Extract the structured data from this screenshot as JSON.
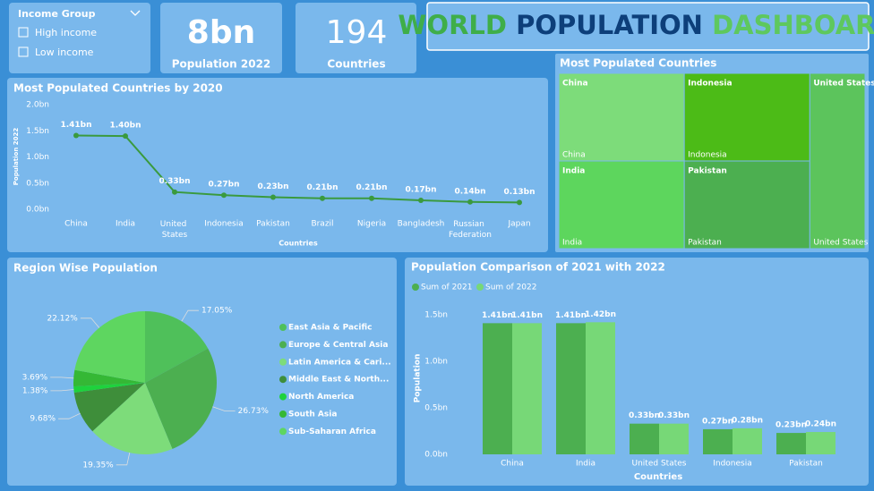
{
  "slicer": {
    "title": "Income Group",
    "items": [
      "High income",
      "Low income"
    ]
  },
  "cards": [
    {
      "value": "8bn",
      "label": "Population 2022"
    },
    {
      "value": "194",
      "label": "Countries"
    }
  ],
  "header": {
    "title": [
      "WORLD",
      "POPULATION",
      "DASHBOARD"
    ]
  },
  "chart_data": [
    {
      "type": "line",
      "title": "Most Populated Countries by 2020",
      "x_label": "Countries",
      "y_label": "Population 2022",
      "categories": [
        "China",
        "India",
        "United States",
        "Indonesia",
        "Pakistan",
        "Brazil",
        "Nigeria",
        "Bangladesh",
        "Russian Federation",
        "Japan"
      ],
      "values": [
        1.41,
        1.4,
        0.33,
        0.27,
        0.23,
        0.21,
        0.21,
        0.17,
        0.14,
        0.13
      ],
      "value_labels": [
        "1.41bn",
        "1.40bn",
        "0.33bn",
        "0.27bn",
        "0.23bn",
        "0.21bn",
        "0.21bn",
        "0.17bn",
        "0.14bn",
        "0.13bn"
      ],
      "color": "#3a9a3e",
      "ylim": [
        0,
        2
      ],
      "yticks": [
        {
          "value": 0,
          "label": "0.0bn"
        },
        {
          "value": 0.5,
          "label": "0.5bn"
        },
        {
          "value": 1,
          "label": "1.0bn"
        },
        {
          "value": 1.5,
          "label": "1.5bn"
        },
        {
          "value": 2,
          "label": "2.0bn"
        }
      ]
    },
    {
      "type": "treemap",
      "title": "Most Populated Countries",
      "categories": [
        "China",
        "Indonesia",
        "United States",
        "India",
        "Pakistan"
      ],
      "values": [
        25,
        25,
        22,
        25,
        25
      ],
      "colors": [
        "#7ddc7a",
        "#4cbb17",
        "#5cc45c",
        "#5dd65d",
        "#4caf50"
      ]
    },
    {
      "type": "pie",
      "title": "Region Wise Population",
      "categories": [
        "East Asia & Pacific",
        "Europe & Central Asia",
        "Latin America & Cari...",
        "Middle East & North...",
        "North America",
        "South Asia",
        "Sub-Saharan Africa"
      ],
      "values": [
        17.05,
        26.73,
        19.35,
        9.68,
        1.38,
        3.69,
        22.12
      ],
      "value_labels": [
        "17.05%",
        "26.73%",
        "19.35%",
        "9.68%",
        "1.38%",
        "3.69%",
        "22.12%"
      ],
      "colors": [
        "#4fc05a",
        "#4caf50",
        "#7ddc7a",
        "#3e8e3a",
        "#1ed23c",
        "#35b835",
        "#5ed660"
      ]
    },
    {
      "type": "bar",
      "title": "Population Comparison of 2021 with 2022",
      "x_label": "Countries",
      "y_label": "Population",
      "categories": [
        "China",
        "India",
        "United States",
        "Indonesia",
        "Pakistan"
      ],
      "series": [
        {
          "name": "Sum of 2021",
          "color": "#4caf50",
          "values": [
            1.41,
            1.41,
            0.33,
            0.27,
            0.23
          ],
          "value_labels": [
            "1.41bn",
            "1.41bn",
            "0.33bn",
            "0.27bn",
            "0.23bn"
          ]
        },
        {
          "name": "Sum of 2022",
          "color": "#77d877",
          "values": [
            1.41,
            1.42,
            0.33,
            0.28,
            0.24
          ],
          "value_labels": [
            "1.41bn",
            "1.42bn",
            "0.33bn",
            "0.28bn",
            "0.24bn"
          ]
        }
      ],
      "ylim": [
        0,
        1.6
      ],
      "yticks": [
        {
          "value": 0,
          "label": "0.0bn"
        },
        {
          "value": 0.5,
          "label": "0.5bn"
        },
        {
          "value": 1,
          "label": "1.0bn"
        },
        {
          "value": 1.5,
          "label": "1.5bn"
        }
      ]
    }
  ]
}
